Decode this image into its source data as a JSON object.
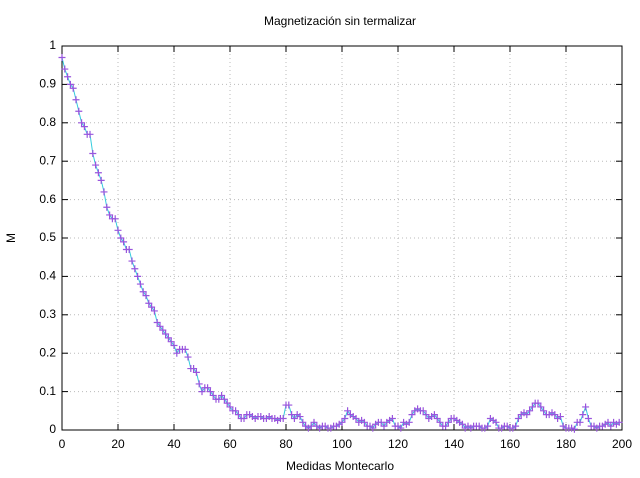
{
  "chart_data": {
    "type": "line",
    "title": "Magnetización sin termalizar",
    "x_label": "Medidas Montecarlo",
    "y_label": "M",
    "x": [
      0,
      1,
      2,
      3,
      4,
      5,
      6,
      7,
      8,
      9,
      10,
      11,
      12,
      13,
      14,
      15,
      16,
      17,
      18,
      19,
      20,
      21,
      22,
      23,
      24,
      25,
      26,
      27,
      28,
      29,
      30,
      31,
      32,
      33,
      34,
      35,
      36,
      37,
      38,
      39,
      40,
      41,
      42,
      43,
      44,
      45,
      46,
      47,
      48,
      49,
      50,
      51,
      52,
      53,
      54,
      55,
      56,
      57,
      58,
      59,
      60,
      61,
      62,
      63,
      64,
      65,
      66,
      67,
      68,
      69,
      70,
      71,
      72,
      73,
      74,
      75,
      76,
      77,
      78,
      79,
      80,
      81,
      82,
      83,
      84,
      85,
      86,
      87,
      88,
      89,
      90,
      91,
      92,
      93,
      94,
      95,
      96,
      97,
      98,
      99,
      100,
      101,
      102,
      103,
      104,
      105,
      106,
      107,
      108,
      109,
      110,
      111,
      112,
      113,
      114,
      115,
      116,
      117,
      118,
      119,
      120,
      121,
      122,
      123,
      124,
      125,
      126,
      127,
      128,
      129,
      130,
      131,
      132,
      133,
      134,
      135,
      136,
      137,
      138,
      139,
      140,
      141,
      142,
      143,
      144,
      145,
      146,
      147,
      148,
      149,
      150,
      151,
      152,
      153,
      154,
      155,
      156,
      157,
      158,
      159,
      160,
      161,
      162,
      163,
      164,
      165,
      166,
      167,
      168,
      169,
      170,
      171,
      172,
      173,
      174,
      175,
      176,
      177,
      178,
      179,
      180,
      181,
      182,
      183,
      184,
      185,
      186,
      187,
      188,
      189,
      190,
      191,
      192,
      193,
      194,
      195,
      196,
      197,
      198,
      199
    ],
    "series": [
      {
        "color": "#33ccdd",
        "marker_color": "#9955dd",
        "values": [
          0.97,
          0.94,
          0.92,
          0.9,
          0.89,
          0.86,
          0.83,
          0.8,
          0.79,
          0.77,
          0.77,
          0.72,
          0.69,
          0.67,
          0.65,
          0.62,
          0.58,
          0.56,
          0.55,
          0.55,
          0.52,
          0.5,
          0.49,
          0.47,
          0.47,
          0.44,
          0.42,
          0.4,
          0.38,
          0.36,
          0.35,
          0.33,
          0.32,
          0.31,
          0.28,
          0.27,
          0.26,
          0.25,
          0.24,
          0.23,
          0.22,
          0.2,
          0.21,
          0.21,
          0.21,
          0.19,
          0.16,
          0.16,
          0.15,
          0.12,
          0.1,
          0.11,
          0.11,
          0.1,
          0.09,
          0.08,
          0.08,
          0.09,
          0.08,
          0.07,
          0.06,
          0.05,
          0.05,
          0.04,
          0.03,
          0.03,
          0.04,
          0.04,
          0.035,
          0.03,
          0.035,
          0.035,
          0.03,
          0.03,
          0.035,
          0.03,
          0.03,
          0.025,
          0.03,
          0.03,
          0.065,
          0.065,
          0.04,
          0.03,
          0.04,
          0.035,
          0.02,
          0.01,
          0.005,
          0.01,
          0.02,
          0.01,
          0.005,
          0.01,
          0.01,
          0.005,
          0.005,
          0.01,
          0.01,
          0.015,
          0.02,
          0.03,
          0.05,
          0.04,
          0.035,
          0.03,
          0.02,
          0.025,
          0.02,
          0.01,
          0.01,
          0.005,
          0.015,
          0.02,
          0.02,
          0.01,
          0.02,
          0.025,
          0.03,
          0.01,
          0.01,
          0.005,
          0.02,
          0.015,
          0.02,
          0.04,
          0.05,
          0.055,
          0.05,
          0.05,
          0.04,
          0.03,
          0.035,
          0.04,
          0.03,
          0.02,
          0.01,
          0.01,
          0.02,
          0.03,
          0.03,
          0.025,
          0.02,
          0.015,
          0.005,
          0.01,
          0.005,
          0.01,
          0.01,
          0.01,
          0.005,
          0.005,
          0.01,
          0.03,
          0.025,
          0.02,
          0.005,
          0.005,
          0.01,
          0.01,
          0.005,
          0.005,
          0.01,
          0.03,
          0.04,
          0.045,
          0.04,
          0.05,
          0.06,
          0.07,
          0.07,
          0.06,
          0.05,
          0.04,
          0.04,
          0.045,
          0.04,
          0.03,
          0.035,
          0.01,
          0.005,
          0.005,
          0.005,
          0.002,
          0.02,
          0.02,
          0.04,
          0.06,
          0.03,
          0.01,
          0.01,
          0.005,
          0.01,
          0.01,
          0.015,
          0.02,
          0.01,
          0.02,
          0.015,
          0.02
        ]
      }
    ],
    "xlim": [
      0,
      200
    ],
    "xticks": [
      0,
      20,
      40,
      60,
      80,
      100,
      120,
      140,
      160,
      180,
      200
    ],
    "ylim": [
      0,
      1
    ],
    "yticks": [
      0,
      0.1,
      0.2,
      0.3,
      0.4,
      0.5,
      0.6,
      0.7,
      0.8,
      0.9,
      1
    ],
    "grid": true
  }
}
